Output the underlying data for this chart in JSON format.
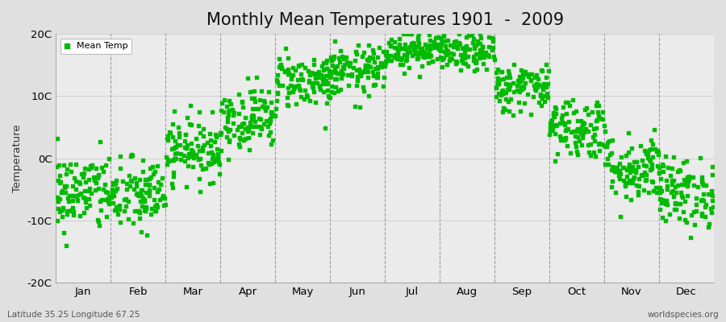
{
  "title": "Monthly Mean Temperatures 1901  -  2009",
  "ylabel": "Temperature",
  "xlabel_labels": [
    "Jan",
    "Feb",
    "Mar",
    "Apr",
    "May",
    "Jun",
    "Jul",
    "Aug",
    "Sep",
    "Oct",
    "Nov",
    "Dec"
  ],
  "ytick_labels": [
    "-20C",
    "-10C",
    "0C",
    "10C",
    "20C"
  ],
  "ytick_values": [
    -20,
    -10,
    0,
    10,
    20
  ],
  "ylim": [
    -20,
    20
  ],
  "dot_color": "#00BB00",
  "bg_color": "#E0E0E0",
  "plot_bg_color": "#EBEBEB",
  "legend_label": "Mean Temp",
  "subtitle_left": "Latitude 35.25 Longitude 67.25",
  "subtitle_right": "worldspecies.org",
  "title_fontsize": 15,
  "axis_fontsize": 9.5,
  "dot_size": 8,
  "n_years": 109,
  "monthly_means": [
    -5.5,
    -6.0,
    1.5,
    6.5,
    12.5,
    14.0,
    17.5,
    17.0,
    11.5,
    5.0,
    -1.5,
    -5.5
  ],
  "monthly_stds": [
    3.2,
    3.0,
    2.5,
    2.5,
    2.2,
    2.0,
    1.5,
    1.5,
    2.0,
    2.5,
    2.8,
    2.8
  ]
}
